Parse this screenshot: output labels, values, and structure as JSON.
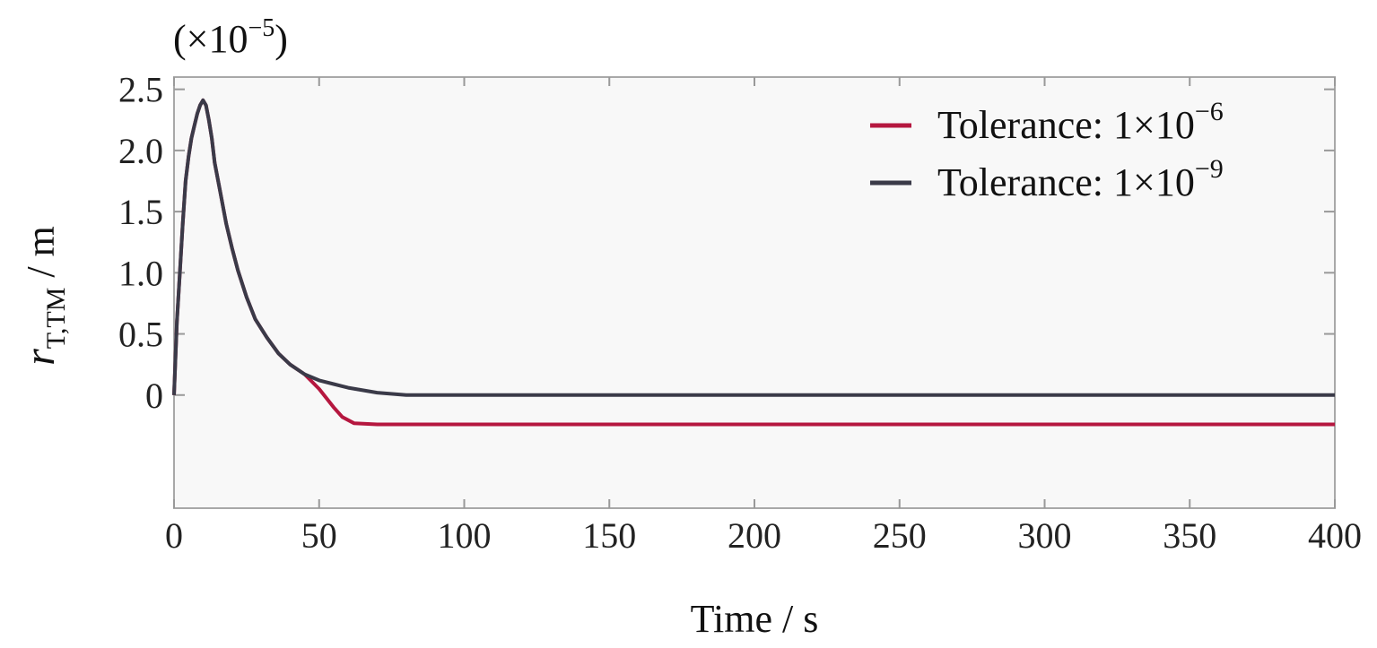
{
  "chart_data": {
    "type": "line",
    "title": "",
    "xlabel": "Time / s",
    "ylabel_main": "r",
    "ylabel_sub": "T,TM",
    "ylabel_unit": " / m",
    "y_multiplier": "(×10",
    "y_multiplier_exp": "−5",
    "y_multiplier_close": ")",
    "xlim": [
      0,
      400
    ],
    "ylim": [
      -0.925,
      2.6
    ],
    "xticks": [
      0,
      50,
      100,
      150,
      200,
      250,
      300,
      350,
      400
    ],
    "xtick_labels": [
      "0",
      "50",
      "100",
      "150",
      "200",
      "250",
      "300",
      "350",
      "400"
    ],
    "yticks": [
      0,
      0.5,
      1.0,
      1.5,
      2.0,
      2.5
    ],
    "ytick_labels": [
      "0",
      "0.5",
      "1.0",
      "1.5",
      "2.0",
      "2.5"
    ],
    "grid": false,
    "legend_position": "top-right",
    "series": [
      {
        "name": "Tolerance: 1×10",
        "name_exp": "−6",
        "color": "#b5173f",
        "points": [
          [
            0,
            0
          ],
          [
            1,
            0.6
          ],
          [
            2,
            1.0
          ],
          [
            3,
            1.4
          ],
          [
            4,
            1.75
          ],
          [
            5,
            1.95
          ],
          [
            6,
            2.1
          ],
          [
            7,
            2.2
          ],
          [
            8,
            2.3
          ],
          [
            9,
            2.37
          ],
          [
            10,
            2.41
          ],
          [
            11,
            2.37
          ],
          [
            12,
            2.25
          ],
          [
            13,
            2.1
          ],
          [
            14,
            1.9
          ],
          [
            16,
            1.65
          ],
          [
            18,
            1.4
          ],
          [
            20,
            1.2
          ],
          [
            22,
            1.02
          ],
          [
            25,
            0.8
          ],
          [
            28,
            0.62
          ],
          [
            32,
            0.47
          ],
          [
            36,
            0.34
          ],
          [
            40,
            0.25
          ],
          [
            45,
            0.17
          ],
          [
            50,
            0.05
          ],
          [
            55,
            -0.1
          ],
          [
            58,
            -0.18
          ],
          [
            62,
            -0.23
          ],
          [
            70,
            -0.24
          ],
          [
            400,
            -0.24
          ]
        ]
      },
      {
        "name": "Tolerance: 1×10",
        "name_exp": "−9",
        "color": "#3a3a48",
        "points": [
          [
            0,
            0
          ],
          [
            1,
            0.6
          ],
          [
            2,
            1.0
          ],
          [
            3,
            1.4
          ],
          [
            4,
            1.75
          ],
          [
            5,
            1.95
          ],
          [
            6,
            2.1
          ],
          [
            7,
            2.2
          ],
          [
            8,
            2.3
          ],
          [
            9,
            2.37
          ],
          [
            10,
            2.41
          ],
          [
            11,
            2.37
          ],
          [
            12,
            2.25
          ],
          [
            13,
            2.1
          ],
          [
            14,
            1.9
          ],
          [
            16,
            1.65
          ],
          [
            18,
            1.4
          ],
          [
            20,
            1.2
          ],
          [
            22,
            1.02
          ],
          [
            25,
            0.8
          ],
          [
            28,
            0.62
          ],
          [
            32,
            0.47
          ],
          [
            36,
            0.34
          ],
          [
            40,
            0.25
          ],
          [
            45,
            0.17
          ],
          [
            50,
            0.12
          ],
          [
            55,
            0.09
          ],
          [
            60,
            0.06
          ],
          [
            70,
            0.02
          ],
          [
            80,
            0
          ],
          [
            100,
            0
          ],
          [
            400,
            0
          ]
        ]
      }
    ]
  }
}
